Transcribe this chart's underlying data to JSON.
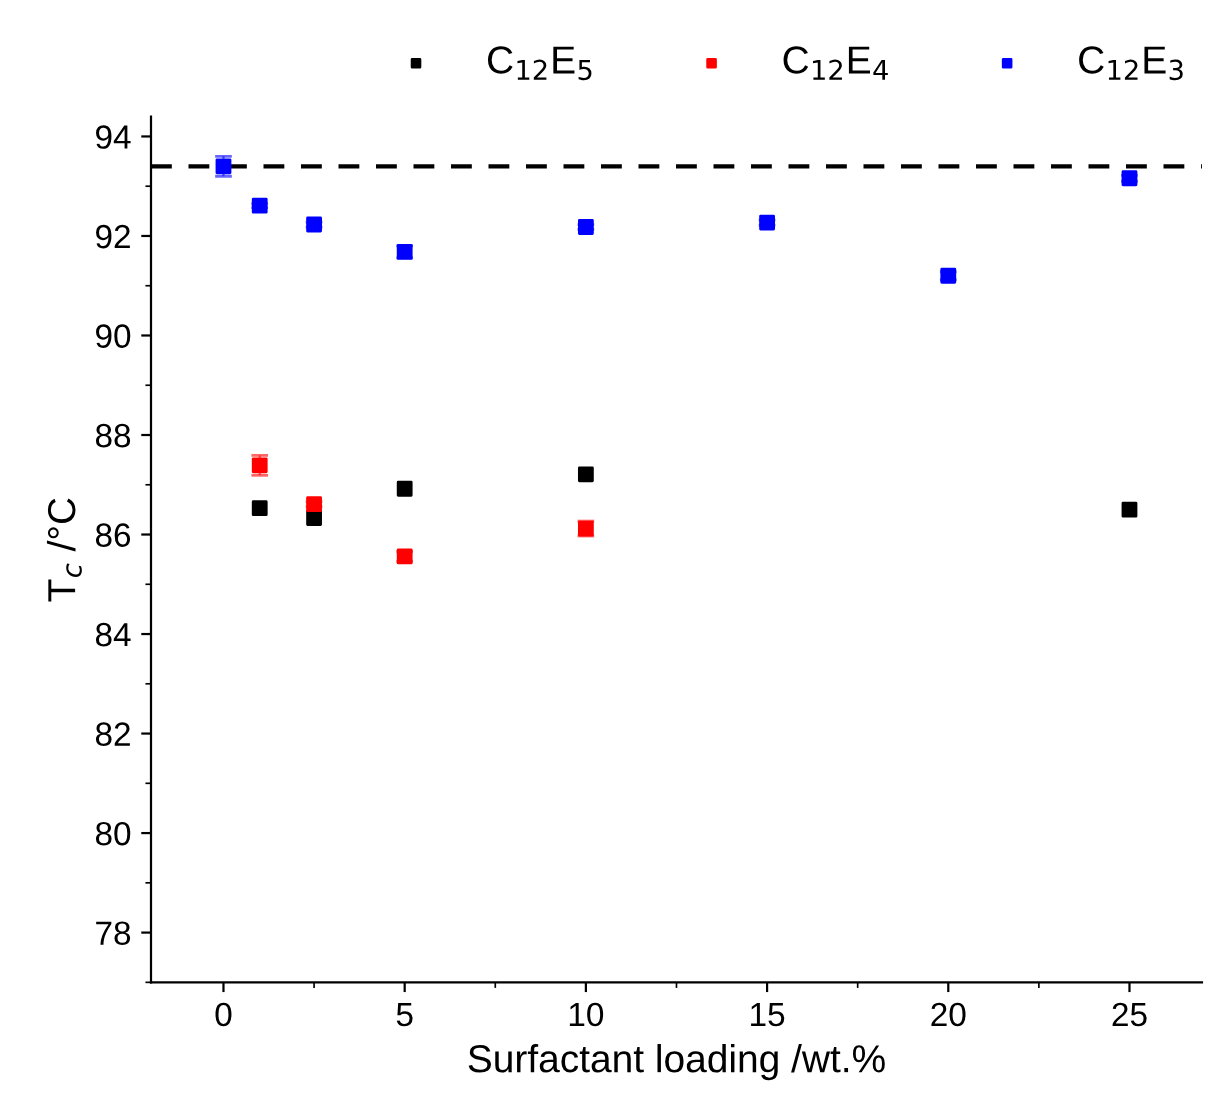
{
  "chart_data": {
    "type": "scatter",
    "xlabel": "Surfactant loading /wt.%",
    "ylabel": "T$_{c}$ /°C",
    "xlim": [
      -2,
      27
    ],
    "ylim": [
      77,
      94.4
    ],
    "xticks": [
      0,
      5,
      10,
      15,
      20,
      25
    ],
    "yticks": [
      78,
      80,
      82,
      84,
      86,
      88,
      90,
      92,
      94
    ],
    "marker": "square",
    "legend": "top",
    "grid": false,
    "series": [
      {
        "name": "C$_{12}$E$_{5}$",
        "color": "#000000",
        "x": [
          1,
          2.5,
          5,
          10,
          25
        ],
        "values": [
          86.53,
          86.33,
          86.92,
          87.21,
          86.5
        ]
      },
      {
        "name": "C$_{12}$E$_{4}$",
        "color": "#ff0000",
        "x": [
          1,
          2.5,
          5,
          10
        ],
        "values": [
          87.39,
          86.61,
          85.56,
          86.12
        ],
        "errors": [
          0.2,
          0.05,
          0.1,
          0.15
        ]
      },
      {
        "name": "C$_{12}$E$_{3}$",
        "color": "#0000ff",
        "x": [
          0,
          1,
          2.5,
          5,
          10,
          15,
          20,
          25
        ],
        "values": [
          93.4,
          92.61,
          92.23,
          91.68,
          92.18,
          92.27,
          91.2,
          93.16
        ],
        "errors": [
          0.2,
          0.04,
          0.05,
          0.12,
          0.05,
          0.05,
          0.08,
          0.06
        ]
      }
    ],
    "ref_lines": [
      {
        "axis": "y",
        "value": 93.4,
        "color": "#000000",
        "line_style": "dashed"
      }
    ]
  }
}
